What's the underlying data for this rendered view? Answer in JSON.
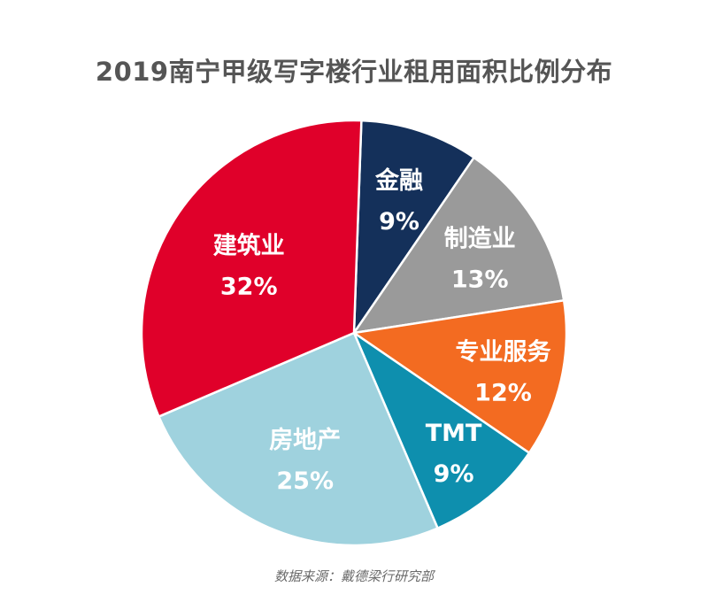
{
  "chart_data": {
    "type": "pie",
    "title": "2019南宁甲级写字楼行业租用面积比例分布",
    "source": "数据来源：戴德梁行研究部",
    "categories": [
      "金融",
      "制造业",
      "专业服务",
      "TMT",
      "房地产",
      "建筑业"
    ],
    "values": [
      9,
      13,
      12,
      9,
      25,
      32
    ],
    "value_labels": [
      "9%",
      "13%",
      "12%",
      "9%",
      "25%",
      "32%"
    ],
    "colors": [
      "#14305a",
      "#9a9a9a",
      "#f36b21",
      "#0e8fae",
      "#9fd2de",
      "#e0002a"
    ],
    "start": "top, clockwise",
    "labels_inside": true,
    "legend": "none"
  }
}
